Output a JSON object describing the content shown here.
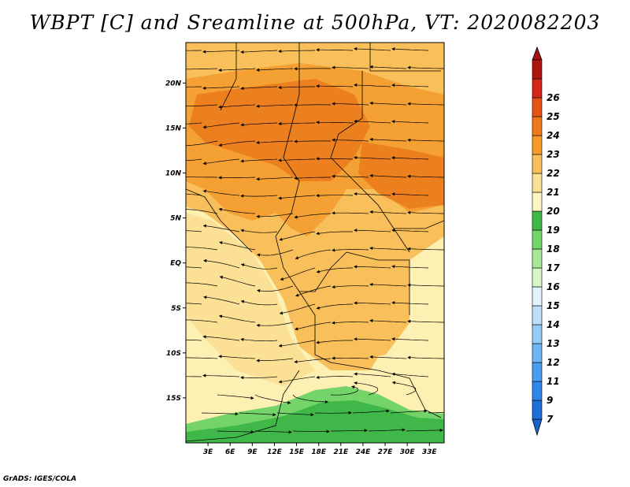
{
  "title": "WBPT [C] and Sreamline at 500hPa, VT: 2020082203",
  "credit": "GrADS: IGES/COLA",
  "map": {
    "lon_range": [
      0,
      35
    ],
    "lat_range": [
      -20,
      24.5
    ],
    "lat_ticks": [
      {
        "value": 20,
        "label": "20N"
      },
      {
        "value": 15,
        "label": "15N"
      },
      {
        "value": 10,
        "label": "10N"
      },
      {
        "value": 5,
        "label": "5N"
      },
      {
        "value": 0,
        "label": "EQ"
      },
      {
        "value": -5,
        "label": "5S"
      },
      {
        "value": -10,
        "label": "10S"
      },
      {
        "value": -15,
        "label": "15S"
      }
    ],
    "lon_ticks": [
      {
        "value": 3,
        "label": "3E"
      },
      {
        "value": 6,
        "label": "6E"
      },
      {
        "value": 9,
        "label": "9E"
      },
      {
        "value": 12,
        "label": "12E"
      },
      {
        "value": 15,
        "label": "15E"
      },
      {
        "value": 18,
        "label": "18E"
      },
      {
        "value": 21,
        "label": "21E"
      },
      {
        "value": 24,
        "label": "24E"
      },
      {
        "value": 27,
        "label": "27E"
      },
      {
        "value": 30,
        "label": "30E"
      },
      {
        "value": 33,
        "label": "33E"
      }
    ]
  },
  "colorbar": {
    "levels": [
      {
        "label": "7",
        "color": "#1f6fd8"
      },
      {
        "label": "9",
        "color": "#2f86e6"
      },
      {
        "label": "11",
        "color": "#4a9ef0"
      },
      {
        "label": "12",
        "color": "#6fb5f5"
      },
      {
        "label": "13",
        "color": "#96cbf8"
      },
      {
        "label": "14",
        "color": "#bddffb"
      },
      {
        "label": "15",
        "color": "#e2f3fd"
      },
      {
        "label": "16",
        "color": "#d6f5c8"
      },
      {
        "label": "17",
        "color": "#a9e89b"
      },
      {
        "label": "18",
        "color": "#74d46a"
      },
      {
        "label": "19",
        "color": "#3fb849"
      },
      {
        "label": "20",
        "color": "#fdf6c3"
      },
      {
        "label": "21",
        "color": "#fbe096"
      },
      {
        "label": "22",
        "color": "#f8bf5a"
      },
      {
        "label": "23",
        "color": "#f49b2a"
      },
      {
        "label": "24",
        "color": "#ef7a1a"
      },
      {
        "label": "25",
        "color": "#e8531a"
      },
      {
        "label": "26",
        "color": "#d3261a"
      },
      {
        "label": "",
        "color": "#b01410"
      }
    ],
    "under_color": "#1a63cc",
    "over_color": "#a8100e"
  },
  "field_colors": {
    "deep_orange": "#ec7f1e",
    "orange": "#f4a033",
    "light_orange": "#f8bf5a",
    "pale_yellow": "#fbe096",
    "cream": "#fdf0b3",
    "green": "#3fb849",
    "light_green": "#74d46a"
  }
}
